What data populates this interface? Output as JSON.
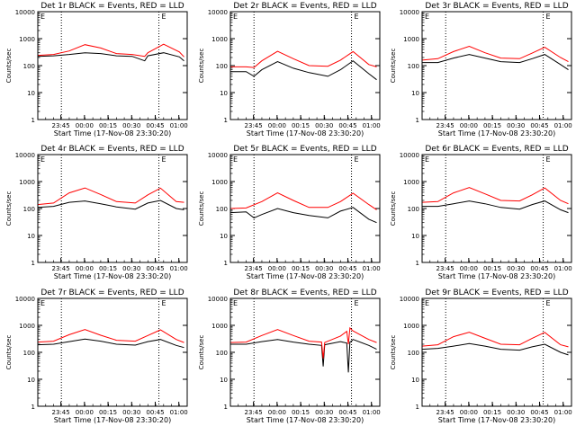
{
  "page": {
    "background": "#ffffff"
  },
  "colors": {
    "events": "#000000",
    "lld": "#ff0000",
    "axis": "#000000"
  },
  "shared": {
    "ylabel": "Counts/sec",
    "xlabel": "Start Time (17-Nov-08 23:30:20)",
    "xticks": [
      "23:45",
      "00:00",
      "00:15",
      "00:30",
      "00:45",
      "01:00"
    ],
    "yticks": [
      "1",
      "10",
      "100",
      "1000",
      "10000"
    ],
    "corner_marks": [
      "E",
      "E"
    ]
  },
  "chart_data": [
    {
      "type": "line",
      "title": "Det 1r BLACK = Events, RED = LLD",
      "xlabel": "Start Time (17-Nov-08 23:30:20)",
      "ylabel": "Counts/sec",
      "x_unit": "minutes from 23:30:20",
      "xlim": [
        0,
        95
      ],
      "ylim": [
        1,
        10000
      ],
      "yscale": "log",
      "grid": "vertical dotted at x=15 and x=77",
      "series": [
        {
          "name": "BLACK = Events",
          "color": "#000000",
          "x": [
            0,
            10,
            20,
            30,
            40,
            50,
            60,
            68,
            70,
            80,
            90,
            93
          ],
          "values": [
            220,
            230,
            260,
            300,
            280,
            230,
            220,
            150,
            230,
            300,
            210,
            150
          ]
        },
        {
          "name": "RED = LLD",
          "color": "#ff0000",
          "x": [
            0,
            10,
            20,
            30,
            40,
            50,
            60,
            68,
            70,
            80,
            90,
            93
          ],
          "values": [
            240,
            260,
            350,
            600,
            450,
            280,
            260,
            220,
            300,
            620,
            320,
            210
          ]
        }
      ]
    },
    {
      "type": "line",
      "title": "Det 2r BLACK = Events, RED = LLD",
      "xlabel": "Start Time (17-Nov-08 23:30:20)",
      "ylabel": "Counts/sec",
      "x_unit": "minutes from 23:30:20",
      "xlim": [
        0,
        95
      ],
      "ylim": [
        1,
        10000
      ],
      "yscale": "log",
      "grid": "vertical dotted at x=15 and x=77",
      "series": [
        {
          "name": "BLACK = Events",
          "color": "#000000",
          "x": [
            0,
            10,
            15,
            20,
            30,
            40,
            50,
            62,
            70,
            78,
            88,
            93
          ],
          "values": [
            60,
            60,
            40,
            70,
            140,
            80,
            55,
            40,
            70,
            150,
            50,
            30
          ]
        },
        {
          "name": "RED = LLD",
          "color": "#ff0000",
          "x": [
            0,
            10,
            15,
            20,
            30,
            40,
            50,
            62,
            70,
            78,
            88,
            93
          ],
          "values": [
            90,
            90,
            85,
            150,
            340,
            180,
            100,
            95,
            160,
            330,
            110,
            90
          ]
        }
      ]
    },
    {
      "type": "line",
      "title": "Det 3r BLACK = Events, RED = LLD",
      "xlabel": "Start Time (17-Nov-08 23:30:20)",
      "ylabel": "Counts/sec",
      "x_unit": "minutes from 23:30:20",
      "xlim": [
        0,
        95
      ],
      "ylim": [
        1,
        10000
      ],
      "yscale": "log",
      "grid": "vertical dotted at x=15 and x=77",
      "series": [
        {
          "name": "BLACK = Events",
          "color": "#000000",
          "x": [
            0,
            10,
            20,
            30,
            40,
            50,
            62,
            70,
            78,
            88,
            93
          ],
          "values": [
            130,
            130,
            190,
            260,
            190,
            140,
            130,
            180,
            260,
            110,
            70
          ]
        },
        {
          "name": "RED = LLD",
          "color": "#ff0000",
          "x": [
            0,
            10,
            20,
            30,
            40,
            50,
            62,
            70,
            78,
            88,
            93
          ],
          "values": [
            160,
            180,
            330,
            520,
            300,
            190,
            180,
            290,
            480,
            200,
            140
          ]
        }
      ]
    },
    {
      "type": "line",
      "title": "Det 4r BLACK = Events, RED = LLD",
      "xlabel": "Start Time (17-Nov-08 23:30:20)",
      "ylabel": "Counts/sec",
      "x_unit": "minutes from 23:30:20",
      "xlim": [
        0,
        95
      ],
      "ylim": [
        1,
        10000
      ],
      "yscale": "log",
      "grid": "vertical dotted at x=15 and x=77",
      "series": [
        {
          "name": "BLACK = Events",
          "color": "#000000",
          "x": [
            0,
            10,
            20,
            30,
            40,
            50,
            62,
            70,
            78,
            88,
            93
          ],
          "values": [
            110,
            120,
            170,
            190,
            150,
            115,
            95,
            160,
            200,
            100,
            90
          ]
        },
        {
          "name": "RED = LLD",
          "color": "#ff0000",
          "x": [
            0,
            10,
            20,
            30,
            40,
            50,
            62,
            70,
            78,
            88,
            93
          ],
          "values": [
            140,
            160,
            380,
            580,
            330,
            180,
            160,
            320,
            570,
            180,
            170
          ]
        }
      ]
    },
    {
      "type": "line",
      "title": "Det 5r BLACK = Events, RED = LLD",
      "xlabel": "Start Time (17-Nov-08 23:30:20)",
      "ylabel": "Counts/sec",
      "x_unit": "minutes from 23:30:20",
      "xlim": [
        0,
        95
      ],
      "ylim": [
        1,
        10000
      ],
      "yscale": "log",
      "grid": "vertical dotted at x=15 and x=77",
      "series": [
        {
          "name": "BLACK = Events",
          "color": "#000000",
          "x": [
            0,
            10,
            15,
            20,
            30,
            40,
            50,
            62,
            70,
            78,
            88,
            93
          ],
          "values": [
            70,
            75,
            45,
            60,
            100,
            70,
            55,
            45,
            80,
            110,
            40,
            30
          ]
        },
        {
          "name": "RED = LLD",
          "color": "#ff0000",
          "x": [
            0,
            10,
            20,
            30,
            40,
            50,
            62,
            70,
            78,
            88,
            93
          ],
          "values": [
            100,
            105,
            180,
            380,
            200,
            110,
            110,
            180,
            370,
            140,
            90
          ]
        }
      ]
    },
    {
      "type": "line",
      "title": "Det 6r BLACK = Events, RED = LLD",
      "xlabel": "Start Time (17-Nov-08 23:30:20)",
      "ylabel": "Counts/sec",
      "x_unit": "minutes from 23:30:20",
      "xlim": [
        0,
        95
      ],
      "ylim": [
        1,
        10000
      ],
      "yscale": "log",
      "grid": "vertical dotted at x=15 and x=77",
      "series": [
        {
          "name": "BLACK = Events",
          "color": "#000000",
          "x": [
            0,
            10,
            20,
            30,
            40,
            50,
            62,
            70,
            78,
            88,
            93
          ],
          "values": [
            120,
            120,
            150,
            190,
            150,
            110,
            95,
            140,
            190,
            90,
            70
          ]
        },
        {
          "name": "RED = LLD",
          "color": "#ff0000",
          "x": [
            0,
            10,
            20,
            30,
            40,
            50,
            62,
            70,
            78,
            88,
            93
          ],
          "values": [
            170,
            180,
            380,
            600,
            350,
            200,
            190,
            320,
            580,
            200,
            150
          ]
        }
      ]
    },
    {
      "type": "line",
      "title": "Det 7r BLACK = Events, RED = LLD",
      "xlabel": "Start Time (17-Nov-08 23:30:20)",
      "ylabel": "Counts/sec",
      "x_unit": "minutes from 23:30:20",
      "xlim": [
        0,
        95
      ],
      "ylim": [
        1,
        10000
      ],
      "yscale": "log",
      "grid": "vertical dotted at x=15 and x=77",
      "series": [
        {
          "name": "BLACK = Events",
          "color": "#000000",
          "x": [
            0,
            10,
            20,
            30,
            40,
            50,
            62,
            70,
            78,
            88,
            93
          ],
          "values": [
            190,
            200,
            250,
            310,
            260,
            200,
            185,
            250,
            300,
            180,
            150
          ]
        },
        {
          "name": "RED = LLD",
          "color": "#ff0000",
          "x": [
            0,
            10,
            20,
            30,
            40,
            50,
            62,
            70,
            78,
            88,
            93
          ],
          "values": [
            240,
            260,
            450,
            700,
            430,
            280,
            260,
            420,
            680,
            300,
            230
          ]
        }
      ]
    },
    {
      "type": "line",
      "title": "Det 8r BLACK = Events, RED = LLD",
      "xlabel": "Start Time (17-Nov-08 23:30:20)",
      "ylabel": "Counts/sec",
      "x_unit": "minutes from 23:30:20",
      "xlim": [
        0,
        95
      ],
      "ylim": [
        1,
        10000
      ],
      "yscale": "log",
      "grid": "vertical dotted at x=15 and x=77",
      "series": [
        {
          "name": "BLACK = Events",
          "color": "#000000",
          "x": [
            0,
            10,
            20,
            30,
            40,
            50,
            58,
            59,
            60,
            70,
            74,
            75,
            76,
            77,
            78,
            88,
            93
          ],
          "values": [
            200,
            200,
            250,
            300,
            240,
            200,
            180,
            30,
            190,
            250,
            220,
            18,
            240,
            260,
            300,
            180,
            130
          ]
        },
        {
          "name": "RED = LLD",
          "color": "#ff0000",
          "x": [
            0,
            10,
            20,
            30,
            40,
            50,
            58,
            59,
            60,
            70,
            74,
            75,
            76,
            78,
            88,
            93
          ],
          "values": [
            230,
            240,
            420,
            700,
            420,
            260,
            240,
            60,
            230,
            400,
            600,
            200,
            800,
            620,
            300,
            230
          ]
        }
      ]
    },
    {
      "type": "line",
      "title": "Det 9r BLACK = Events, RED = LLD",
      "xlabel": "Start Time (17-Nov-08 23:30:20)",
      "ylabel": "Counts/sec",
      "x_unit": "minutes from 23:30:20",
      "xlim": [
        0,
        95
      ],
      "ylim": [
        1,
        10000
      ],
      "yscale": "log",
      "grid": "vertical dotted at x=15 and x=77",
      "series": [
        {
          "name": "BLACK = Events",
          "color": "#000000",
          "x": [
            0,
            10,
            20,
            30,
            40,
            50,
            62,
            70,
            78,
            88,
            93
          ],
          "values": [
            130,
            140,
            170,
            210,
            170,
            130,
            120,
            160,
            200,
            100,
            80
          ]
        },
        {
          "name": "RED = LLD",
          "color": "#ff0000",
          "x": [
            0,
            10,
            20,
            30,
            40,
            50,
            62,
            70,
            78,
            88,
            93
          ],
          "values": [
            170,
            190,
            380,
            560,
            330,
            200,
            190,
            330,
            550,
            190,
            160
          ]
        }
      ]
    }
  ]
}
